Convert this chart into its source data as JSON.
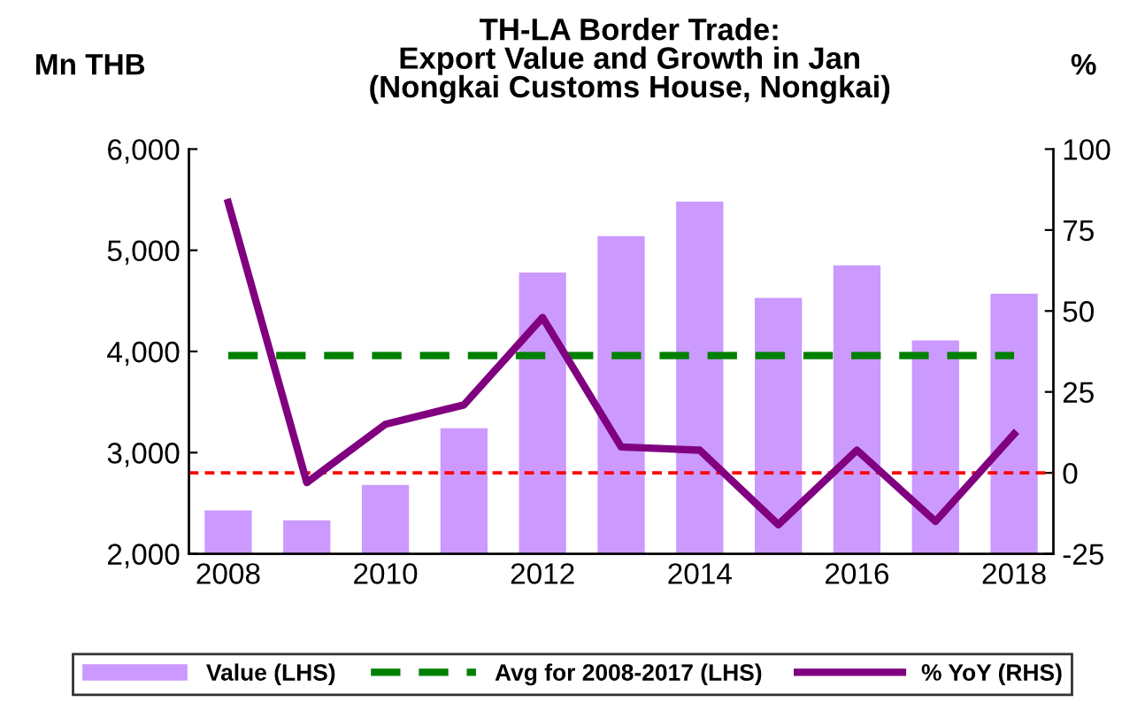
{
  "chart_data": {
    "type": "bar",
    "title": "TH-LA Border Trade:\nExport Value and Growth in Jan\n(Nongkai Customs House, Nongkai)",
    "ylabel": "Mn THB",
    "y2label": "%",
    "categories": [
      "2008",
      null,
      "2010",
      null,
      "2012",
      null,
      "2014",
      null,
      "2016",
      null,
      "2018"
    ],
    "series": [
      {
        "name": "Value (LHS)",
        "color": "#cc99ff",
        "values": [
          2430,
          2330,
          2680,
          3240,
          4780,
          5140,
          5480,
          4530,
          4850,
          4110,
          4570
        ]
      },
      {
        "name": "Avg for 2008-2017 (LHS)",
        "type": "line",
        "color": "#008000",
        "line_style": "dashed",
        "values": [
          3960,
          3960,
          3960,
          3960,
          3960,
          3960,
          3960,
          3960,
          3960,
          3960,
          3960
        ]
      },
      {
        "name": "% YoY (RHS)",
        "type": "line",
        "axis": "y2",
        "color": "#800080",
        "line_style": "solid",
        "values": [
          83.5,
          -3,
          15,
          21,
          48,
          8,
          7,
          -16,
          7,
          -15,
          12
        ]
      }
    ],
    "ylim": [
      2000,
      6000
    ],
    "yticks": [
      {
        "value": 2000,
        "label": "2,000"
      },
      {
        "value": 3000,
        "label": "3,000"
      },
      {
        "value": 4000,
        "label": "4,000"
      },
      {
        "value": 5000,
        "label": "5,000"
      },
      {
        "value": 6000,
        "label": "6,000"
      }
    ],
    "y2lim": [
      -25,
      100
    ],
    "y2ticks": [
      -25,
      0,
      25,
      50,
      75,
      100
    ],
    "ref_lines": [
      {
        "axis": "y2",
        "value": 0,
        "color": "#ff0000",
        "line_style": "dashed"
      }
    ],
    "legend": "bottom",
    "grid": false,
    "marker": "none"
  }
}
